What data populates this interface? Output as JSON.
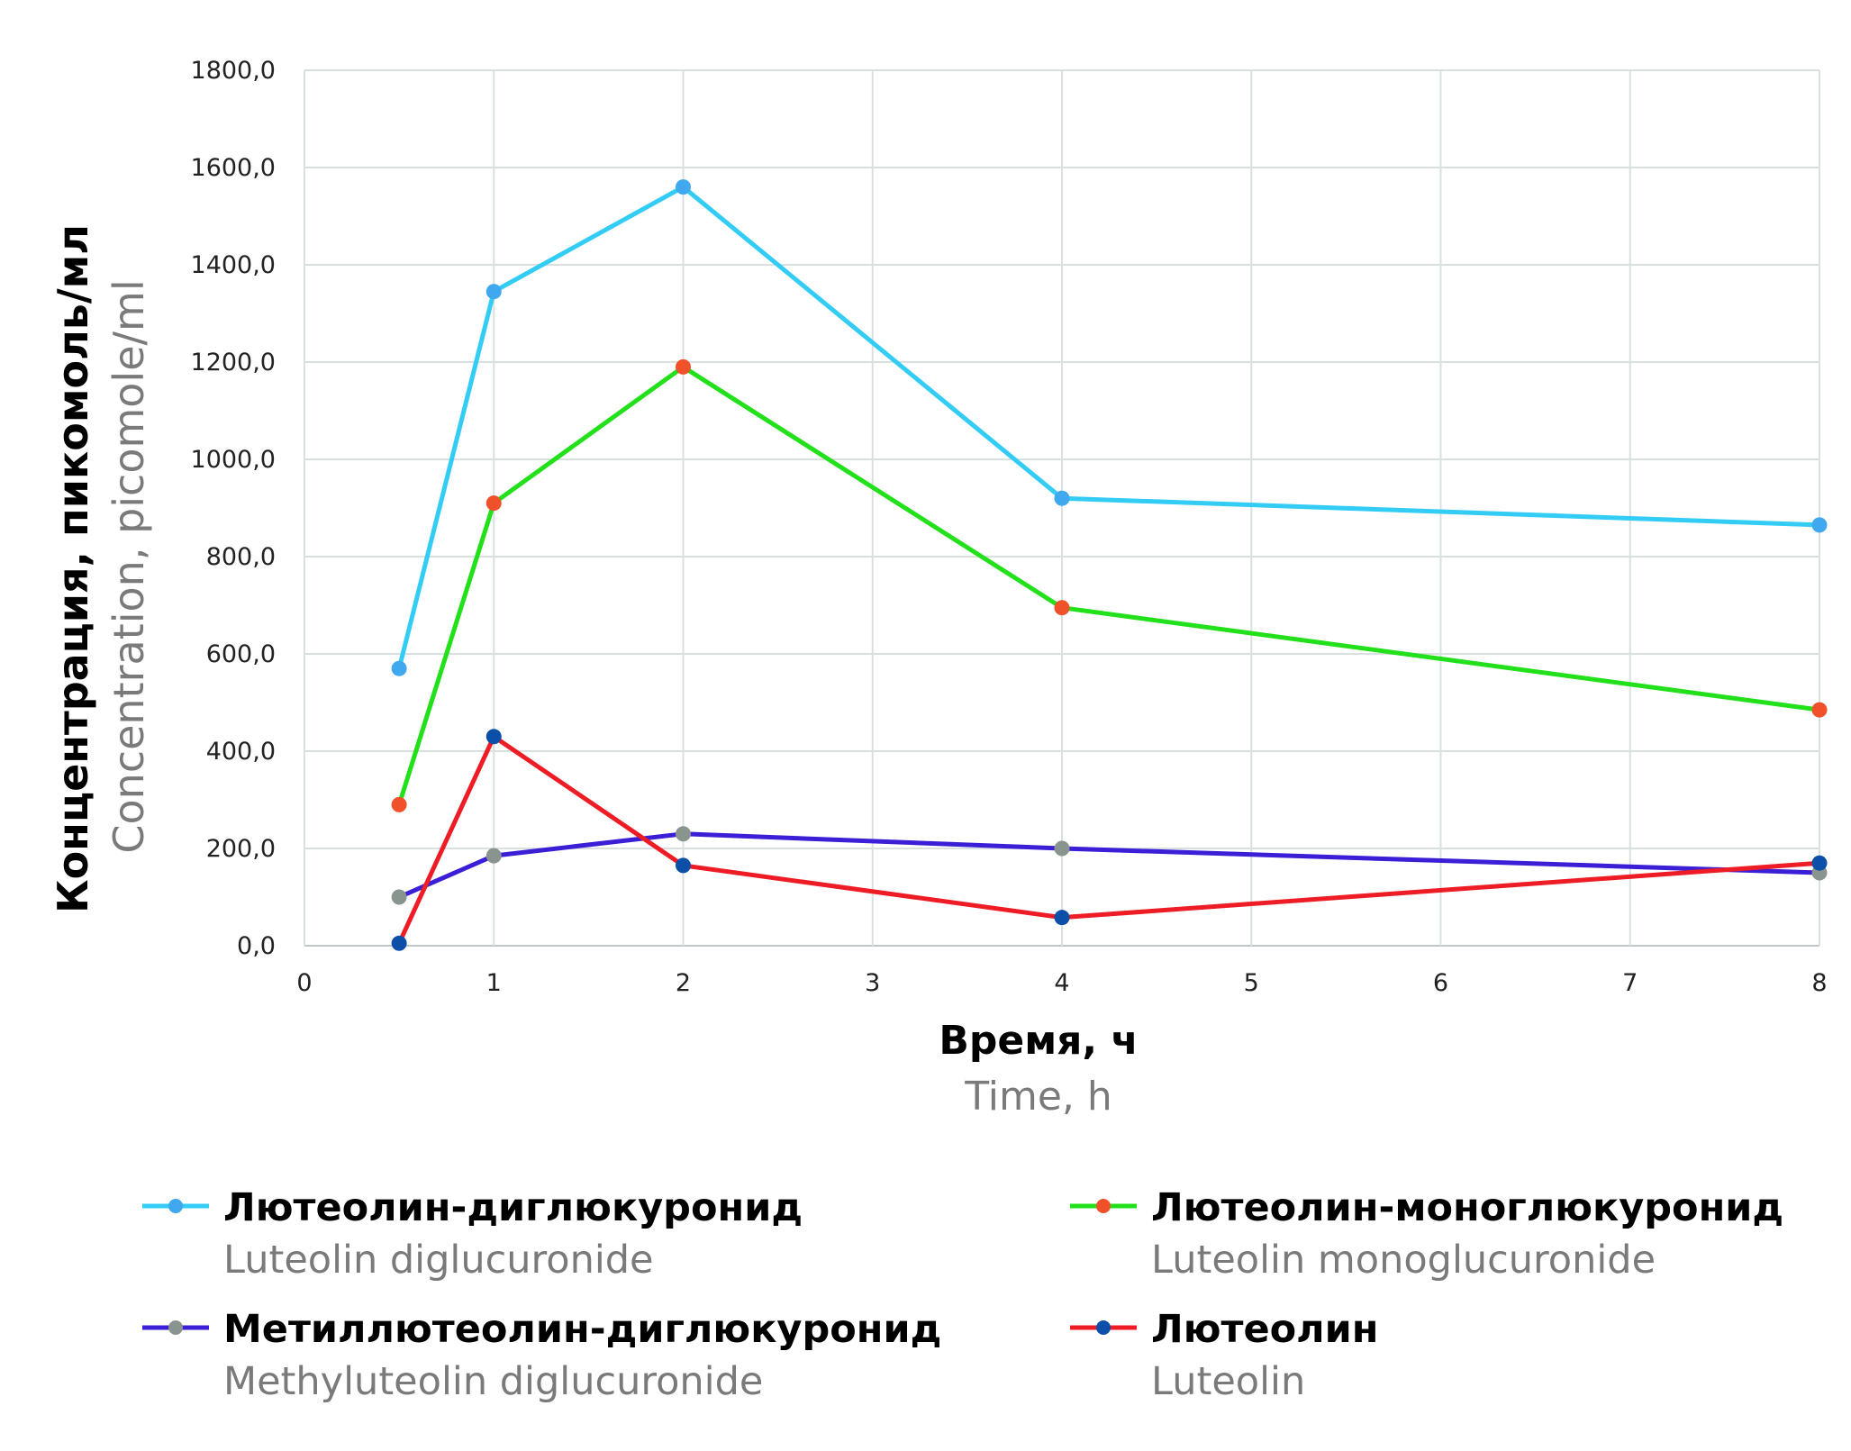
{
  "chart_data": {
    "type": "line",
    "xlabel": "Время, ч",
    "xlabel_en": "Time, h",
    "ylabel": "Концентрация, пикомоль/мл",
    "ylabel_en": "Concentration, picomole/ml",
    "xlim": [
      0,
      8
    ],
    "ylim": [
      0,
      1800
    ],
    "x_ticks": [
      "0",
      "1",
      "2",
      "3",
      "4",
      "5",
      "6",
      "7",
      "8"
    ],
    "y_ticks": [
      "0,0",
      "200,0",
      "400,0",
      "600,0",
      "800,0",
      "1000,0",
      "1200,0",
      "1400,0",
      "1600,0",
      "1800,0"
    ],
    "grid": true,
    "legend_position": "bottom",
    "x": [
      0.5,
      1,
      2,
      4,
      8
    ],
    "series": [
      {
        "name": "Лютеолин-диглюкуронид",
        "name_en": "Luteolin diglucuronide",
        "line_color": "#33ccf5",
        "marker_color": "#3fa8ee",
        "values": [
          570,
          1345,
          1560,
          920,
          865
        ]
      },
      {
        "name": "Лютеолин-моноглюкуронид",
        "name_en": "Luteolin monoglucuronide",
        "line_color": "#22e01a",
        "marker_color": "#f0502a",
        "values": [
          290,
          910,
          1190,
          695,
          485
        ]
      },
      {
        "name": "Метиллютеолин-диглюкуронид",
        "name_en": "Methyluteolin diglucuronide",
        "line_color": "#3a1fd6",
        "marker_color": "#8a948e",
        "values": [
          100,
          185,
          230,
          200,
          150
        ]
      },
      {
        "name": "Лютеолин",
        "name_en": "Luteolin",
        "line_color": "#ee1c24",
        "marker_color": "#0b4fa8",
        "values": [
          5,
          430,
          165,
          58,
          170
        ]
      }
    ]
  }
}
